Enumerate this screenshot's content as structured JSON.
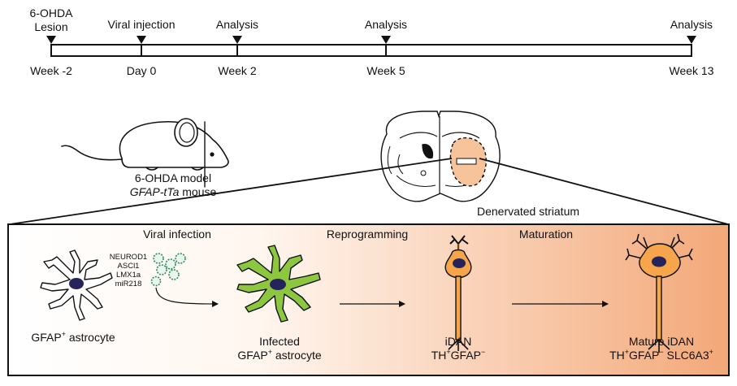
{
  "timeline": {
    "events": [
      {
        "top": "6-OHDA",
        "top2": "Lesion",
        "bottom": "Week -2"
      },
      {
        "top": "Viral injection",
        "bottom": "Day 0"
      },
      {
        "top": "Analysis",
        "bottom": "Week 2"
      },
      {
        "top": "Analysis",
        "bottom": "Week 5"
      },
      {
        "top": "Analysis",
        "bottom": "Week 13"
      }
    ]
  },
  "mouse": {
    "line1": "6-OHDA model",
    "line2_italic": "GFAP-tTa",
    "line2_rest": " mouse"
  },
  "brain": {
    "label": "Denervated striatum"
  },
  "panel": {
    "stages": {
      "infection": "Viral infection",
      "reprogramming": "Reprogramming",
      "maturation": "Maturation"
    },
    "factors": [
      "NEUROD1",
      "ASCl1",
      "LMX1a",
      "miR218"
    ],
    "cells": {
      "astrocyte": {
        "base": "GFAP",
        "sup": "+",
        "rest": " astrocyte"
      },
      "infected": {
        "line1": "Infected",
        "base": "GFAP",
        "sup": "+",
        "rest": " astrocyte"
      },
      "idan": {
        "line1": "iDAN",
        "a": "TH",
        "a_sup": "+",
        "b": "GFAP",
        "b_sup": "−"
      },
      "mature": {
        "line1": "Mature iDAN",
        "a": "TH",
        "a_sup": "+",
        "b": "GFAP",
        "b_sup": "−",
        "c": " SLC6A3",
        "c_sup": "+"
      }
    },
    "colors": {
      "astrocyte_fill": "#ffffff",
      "infected_fill": "#8dc63f",
      "neuron_fill": "#f6a54a",
      "nucleus": "#26235c",
      "virus": "#2e8b57",
      "panel_gradient_end": "#f3a878"
    }
  }
}
